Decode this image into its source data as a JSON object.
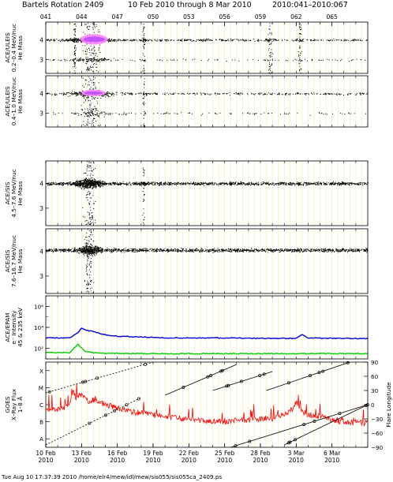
{
  "title": {
    "rotation": "Bartels Rotation 2409",
    "dates": "10 Feb 2010 through 8 Mar 2010",
    "doy": "2010:041–2010:067"
  },
  "footer": "Tue Aug 10 17:37:39 2010   /home/elr4/mew/idl/mew/sis055/sis055ca_2409.ps",
  "colors": {
    "yellow_grid": "#f0f0a0",
    "density_core": "#c050ff",
    "density_mid": "#ff88ff",
    "epam_blue": "#0000dd",
    "epam_green": "#00cc00",
    "xray_red": "#ff0000"
  },
  "chart_data": {
    "type": "scatter",
    "x_range_doy": [
      41,
      68
    ],
    "top_ticks": [
      "041",
      "044",
      "047",
      "050",
      "053",
      "056",
      "059",
      "062",
      "065"
    ],
    "bottom_ticks": [
      {
        "day": "10 Feb",
        "year": "2010"
      },
      {
        "day": "13 Feb",
        "year": "2010"
      },
      {
        "day": "16 Feb",
        "year": "2010"
      },
      {
        "day": "19 Feb",
        "year": "2010"
      },
      {
        "day": "22 Feb",
        "year": "2010"
      },
      {
        "day": "25 Feb",
        "year": "2010"
      },
      {
        "day": "28 Feb",
        "year": "2010"
      },
      {
        "day": "3 Mar",
        "year": "2010"
      },
      {
        "day": "6 Mar",
        "year": "2010"
      }
    ],
    "panels": [
      {
        "kind": "mass",
        "label": [
          "ACE/ULEIS",
          "0.2–0.4 MeV/nuc",
          "He Mass"
        ],
        "y_ticks": [
          "4",
          "3"
        ],
        "bands": [
          4.0,
          3.0
        ],
        "counts": [
          900,
          260
        ],
        "activity": [
          {
            "doy": 43.4,
            "width": 0.25,
            "amp": 2.6
          },
          {
            "doy": 44.8,
            "width": 1.5,
            "amp": 7.0
          },
          {
            "doy": 49.2,
            "width": 0.2,
            "amp": 2.2
          },
          {
            "doy": 59.8,
            "width": 0.4,
            "amp": 2.4
          },
          {
            "doy": 62.3,
            "width": 0.3,
            "amp": 2.2
          }
        ],
        "density_patch": {
          "doy_start": 43.9,
          "doy_end": 46.2,
          "mass_low": 3.8,
          "mass_high": 4.25
        }
      },
      {
        "kind": "mass",
        "label": [
          "ACE/ULEIS",
          "0.4–1.0 MeV/nuc",
          "He Mass"
        ],
        "y_ticks": [
          "4",
          "3"
        ],
        "bands": [
          4.0,
          3.0
        ],
        "counts": [
          560,
          160
        ],
        "activity": [
          {
            "doy": 44.8,
            "width": 1.6,
            "amp": 7.0
          },
          {
            "doy": 49.2,
            "width": 0.2,
            "amp": 1.6
          }
        ],
        "density_patch": {
          "doy_start": 44.0,
          "doy_end": 46.0,
          "mass_low": 3.9,
          "mass_high": 4.15
        }
      },
      {
        "kind": "mass",
        "label": [
          "ACE/SIS",
          "4.5–7.6 MeV/nuc",
          "He Mass"
        ],
        "y_ticks": [
          "4",
          "3"
        ],
        "bands": [
          4.0
        ],
        "counts": [
          1800
        ],
        "activity": [
          {
            "doy": 44.6,
            "width": 1.0,
            "amp": 6.0
          },
          {
            "doy": 49.2,
            "width": 0.2,
            "amp": 1.5
          }
        ]
      },
      {
        "kind": "mass",
        "label": [
          "ACE/SIS",
          "7.6–16.7 MeV/nuc",
          "He Mass"
        ],
        "y_ticks": [
          "4",
          "3"
        ],
        "bands": [
          4.05
        ],
        "counts": [
          1700
        ],
        "activity": [
          {
            "doy": 44.6,
            "width": 0.8,
            "amp": 5.0
          }
        ]
      },
      {
        "kind": "epam",
        "label": [
          "ACE/EPAM",
          "e⁻ Intensity",
          "45 & 235 keV"
        ],
        "y_ticks": [
          "10⁶",
          "10⁴",
          "10²"
        ],
        "y_log_range": [
          1,
          7
        ],
        "series": [
          {
            "color": "blue",
            "x": [
              41.0,
              43.0,
              43.6,
              44.0,
              44.5,
              45.0,
              46.0,
              47.0,
              48.5,
              50.0,
              51.0,
              55.0,
              60.0,
              62.0,
              62.5,
              63.0,
              66.0,
              68.0
            ],
            "log_y": [
              3.0,
              3.0,
              3.4,
              3.9,
              3.7,
              3.6,
              3.3,
              3.15,
              3.1,
              3.05,
              3.0,
              3.0,
              2.95,
              2.95,
              3.3,
              3.0,
              2.95,
              2.95
            ]
          },
          {
            "color": "green",
            "x": [
              41.0,
              43.0,
              43.7,
              44.3,
              45.0,
              46.0,
              48.0,
              68.0
            ],
            "log_y": [
              1.6,
              1.6,
              2.4,
              1.7,
              1.6,
              1.55,
              1.5,
              1.5
            ]
          }
        ]
      },
      {
        "kind": "goes",
        "label": [
          "GOES",
          "X–Ray Flux",
          "1–8 Å"
        ],
        "y_ticks_left": [
          "X",
          "M",
          "C",
          "B",
          "A"
        ],
        "log_flux_range": [
          -8.5,
          -3.5
        ],
        "y_ticks_right": [
          "90",
          "60",
          "30",
          "0",
          "−30",
          "−60",
          "−90"
        ],
        "right_axis_label": "Flare Longitude",
        "flux": {
          "x": [
            41.0,
            42.0,
            43.0,
            43.3,
            43.5,
            44.0,
            44.5,
            45.0,
            45.5,
            46.0,
            47.0,
            48.0,
            49.0,
            50.0,
            52.0,
            54.0,
            56.0,
            58.0,
            60.0,
            61.5,
            62.0,
            62.5,
            63.0,
            64.0,
            65.0,
            66.0,
            68.0
          ],
          "log_flux": [
            -6.4,
            -6.3,
            -6.0,
            -5.2,
            -5.6,
            -5.4,
            -5.8,
            -5.7,
            -5.9,
            -6.0,
            -6.2,
            -6.4,
            -6.5,
            -6.6,
            -6.8,
            -6.9,
            -7.0,
            -6.9,
            -6.8,
            -6.4,
            -5.9,
            -6.4,
            -6.6,
            -6.7,
            -6.9,
            -7.0,
            -7.1
          ]
        },
        "longitude_tracks": [
          {
            "x0": 41.0,
            "x1": 49.0,
            "lon0": -85,
            "lon1": 15,
            "style": "dashed"
          },
          {
            "x0": 41.0,
            "x1": 50.0,
            "lon0": 25,
            "lon1": 90,
            "style": "dashed"
          },
          {
            "x0": 51.0,
            "x1": 57.0,
            "lon0": 20,
            "lon1": 85,
            "style": "solid"
          },
          {
            "x0": 55.0,
            "x1": 60.0,
            "lon0": 30,
            "lon1": 70,
            "style": "solid"
          },
          {
            "x0": 59.5,
            "x1": 66.5,
            "lon0": 30,
            "lon1": 90,
            "style": "solid"
          },
          {
            "x0": 56.5,
            "x1": 68.0,
            "lon0": -90,
            "lon1": 0,
            "style": "solid"
          },
          {
            "x0": 61.0,
            "x1": 68.0,
            "lon0": -85,
            "lon1": 0,
            "style": "solid"
          }
        ]
      }
    ]
  }
}
